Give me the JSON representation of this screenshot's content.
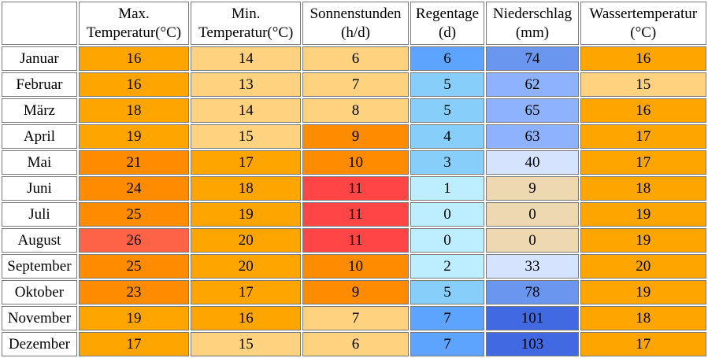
{
  "headers": {
    "max_temp": [
      "Max.",
      "Temperatur(°C)"
    ],
    "min_temp": [
      "Min.",
      "Temperatur(°C)"
    ],
    "sunshine": [
      "Sonnenstunden",
      "(h/d)"
    ],
    "rain_days": [
      "Regentage",
      "(d)"
    ],
    "precipitation": [
      "Niederschlag",
      "(mm)"
    ],
    "water_temp": [
      "Wassertemperatur",
      "(°C)"
    ]
  },
  "rows": [
    {
      "month": "Januar",
      "max": "16",
      "min": "14",
      "sun": "6",
      "rain": "6",
      "prec": "74",
      "water": "16"
    },
    {
      "month": "Februar",
      "max": "16",
      "min": "13",
      "sun": "7",
      "rain": "5",
      "prec": "62",
      "water": "15"
    },
    {
      "month": "März",
      "max": "18",
      "min": "14",
      "sun": "8",
      "rain": "5",
      "prec": "65",
      "water": "16"
    },
    {
      "month": "April",
      "max": "19",
      "min": "15",
      "sun": "9",
      "rain": "4",
      "prec": "63",
      "water": "17"
    },
    {
      "month": "Mai",
      "max": "21",
      "min": "17",
      "sun": "10",
      "rain": "3",
      "prec": "40",
      "water": "17"
    },
    {
      "month": "Juni",
      "max": "24",
      "min": "18",
      "sun": "11",
      "rain": "1",
      "prec": "9",
      "water": "18"
    },
    {
      "month": "Juli",
      "max": "25",
      "min": "19",
      "sun": "11",
      "rain": "0",
      "prec": "0",
      "water": "19"
    },
    {
      "month": "August",
      "max": "26",
      "min": "20",
      "sun": "11",
      "rain": "0",
      "prec": "0",
      "water": "19"
    },
    {
      "month": "September",
      "max": "25",
      "min": "20",
      "sun": "10",
      "rain": "2",
      "prec": "33",
      "water": "20"
    },
    {
      "month": "Oktober",
      "max": "23",
      "min": "17",
      "sun": "9",
      "rain": "5",
      "prec": "78",
      "water": "19"
    },
    {
      "month": "November",
      "max": "19",
      "min": "16",
      "sun": "7",
      "rain": "7",
      "prec": "101",
      "water": "18"
    },
    {
      "month": "Dezember",
      "max": "17",
      "min": "15",
      "sun": "6",
      "rain": "7",
      "prec": "103",
      "water": "17"
    }
  ],
  "colors": {
    "max": [
      "#ffa500",
      "#ffa500",
      "#ffa500",
      "#ffa500",
      "#ff8c00",
      "#ff8c00",
      "#ff8c00",
      "#ff6347",
      "#ff8c00",
      "#ff8c00",
      "#ffa500",
      "#ffa500"
    ],
    "min": [
      "#ffd27f",
      "#ffd27f",
      "#ffd27f",
      "#ffd27f",
      "#ffa500",
      "#ffa500",
      "#ffa500",
      "#ffa500",
      "#ffa500",
      "#ffa500",
      "#ffa500",
      "#ffd27f"
    ],
    "sun": [
      "#ffd27f",
      "#ffd27f",
      "#ffd27f",
      "#ff8c00",
      "#ff8c00",
      "#ff4545",
      "#ff4545",
      "#ff4545",
      "#ff8c00",
      "#ff8c00",
      "#ffd27f",
      "#ffd27f"
    ],
    "rain": [
      "#5ca4ff",
      "#87cefa",
      "#87cefa",
      "#87cefa",
      "#87cefa",
      "#bdeeff",
      "#bdeeff",
      "#bdeeff",
      "#bdeeff",
      "#87cefa",
      "#5ca4ff",
      "#5ca4ff"
    ],
    "prec": [
      "#6a96f0",
      "#8fb2ff",
      "#8fb2ff",
      "#8fb2ff",
      "#d5e3ff",
      "#eed8b2",
      "#eed8b2",
      "#eed8b2",
      "#d5e3ff",
      "#6a96f0",
      "#4169e1",
      "#4169e1"
    ],
    "water": [
      "#ffa500",
      "#ffd27f",
      "#ffa500",
      "#ffa500",
      "#ffa500",
      "#ffa500",
      "#ffa500",
      "#ffa500",
      "#ffa500",
      "#ffa500",
      "#ffa500",
      "#ffa500"
    ]
  }
}
